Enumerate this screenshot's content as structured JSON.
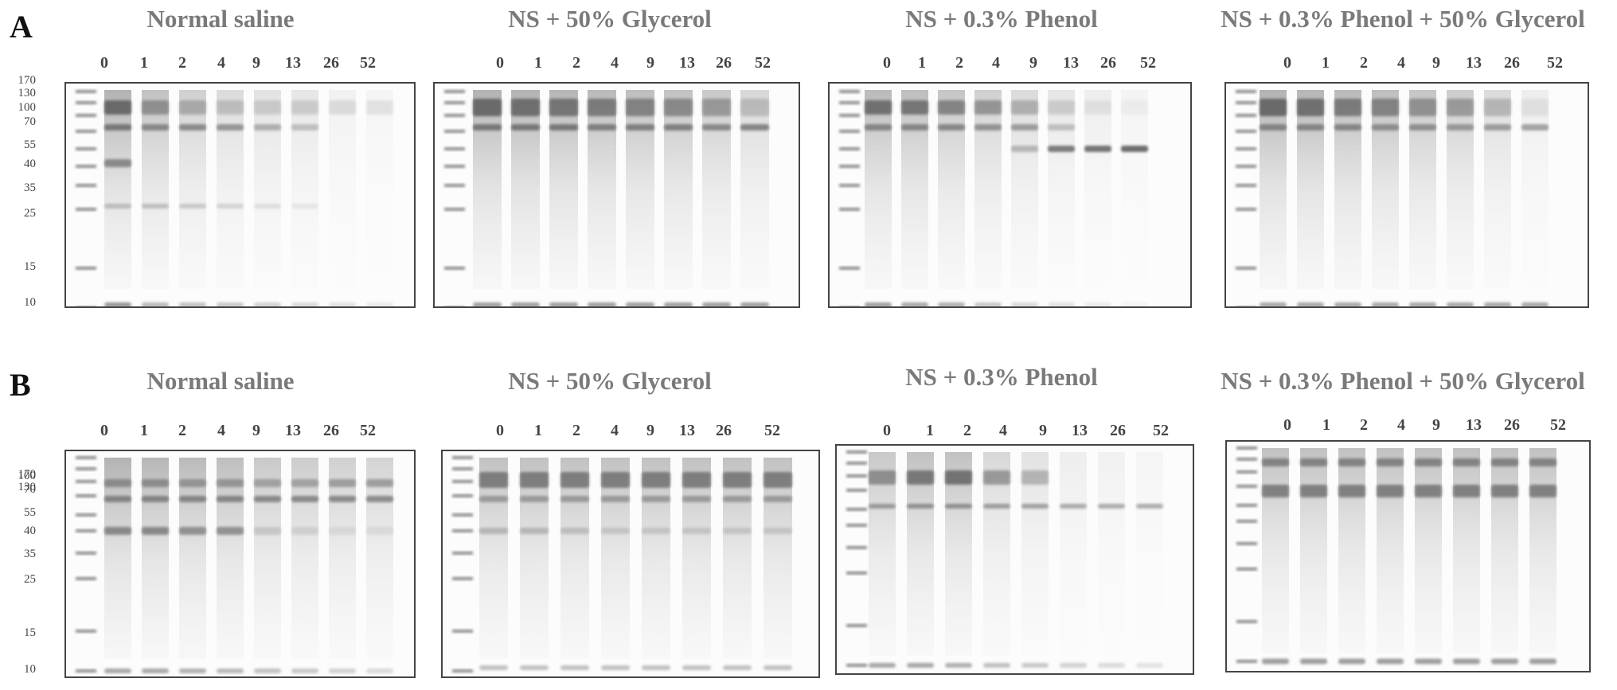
{
  "panels": [
    {
      "letter": "A",
      "ladder_labels": [
        "170",
        "130",
        "100",
        "70",
        "55",
        "40",
        "35",
        "25",
        "15",
        "10"
      ],
      "gels": [
        {
          "title": "Normal saline",
          "lanes": [
            "0",
            "1",
            "2",
            "4",
            "9",
            "13",
            "26",
            "52"
          ]
        },
        {
          "title": "NS + 50% Glycerol",
          "lanes": [
            "0",
            "1",
            "2",
            "4",
            "9",
            "13",
            "26",
            "52"
          ]
        },
        {
          "title": "NS + 0.3% Phenol",
          "lanes": [
            "0",
            "1",
            "2",
            "4",
            "9",
            "13",
            "26",
            "52"
          ]
        },
        {
          "title": "NS + 0.3% Phenol + 50% Glycerol",
          "lanes": [
            "0",
            "1",
            "2",
            "4",
            "9",
            "13",
            "26",
            "52"
          ]
        }
      ]
    },
    {
      "letter": "B",
      "ladder_labels": [
        "170",
        "130",
        "100",
        "70",
        "55",
        "40",
        "35",
        "25",
        "15",
        "10"
      ],
      "gels": [
        {
          "title": "Normal saline",
          "lanes": [
            "0",
            "1",
            "2",
            "4",
            "9",
            "13",
            "26",
            "52"
          ]
        },
        {
          "title": "NS + 50% Glycerol",
          "lanes": [
            "0",
            "1",
            "2",
            "4",
            "9",
            "13",
            "26",
            "52"
          ]
        },
        {
          "title": "NS + 0.3% Phenol",
          "lanes": [
            "0",
            "1",
            "2",
            "4",
            "9",
            "13",
            "26",
            "52"
          ]
        },
        {
          "title": "NS + 0.3% Phenol + 50% Glycerol",
          "lanes": [
            "0",
            "1",
            "2",
            "4",
            "9",
            "13",
            "26",
            "52"
          ]
        }
      ]
    }
  ]
}
